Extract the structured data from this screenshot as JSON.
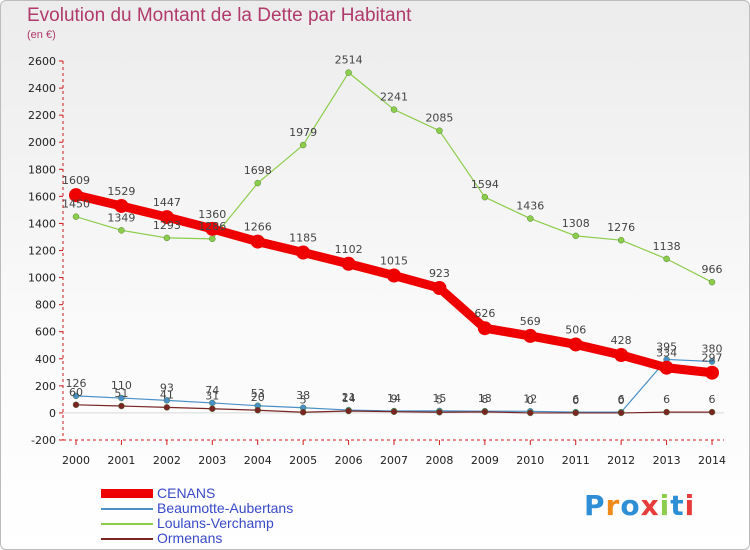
{
  "title": "Evolution du Montant de la Dette par Habitant",
  "subtitle": "(en €)",
  "logo_text": "Proxiti",
  "chart_data": {
    "type": "line",
    "x": [
      "2000",
      "2001",
      "2002",
      "2003",
      "2004",
      "2005",
      "2006",
      "2007",
      "2008",
      "2009",
      "2010",
      "2011",
      "2012",
      "2013",
      "2014"
    ],
    "ylim": [
      -200,
      2600
    ],
    "yticks": [
      -200,
      0,
      200,
      400,
      600,
      800,
      1000,
      1200,
      1400,
      1600,
      1800,
      2000,
      2200,
      2400,
      2600
    ],
    "grid": false,
    "legend_position": "bottom-left",
    "series": [
      {
        "name": "CENANS",
        "color": "#ee0000",
        "values": [
          1609,
          1529,
          1447,
          1360,
          1266,
          1185,
          1102,
          1015,
          923,
          626,
          569,
          506,
          428,
          334,
          297
        ],
        "labels": [
          "1609",
          "1529",
          "1447",
          "1360",
          "1266",
          "1185",
          "1102",
          "1015",
          "923",
          "626",
          "569",
          "506",
          "428",
          "334",
          "297"
        ]
      },
      {
        "name": "Beaumotte-Aubertans",
        "color": "#4a90c8",
        "values": [
          126,
          110,
          93,
          74,
          53,
          38,
          21,
          14,
          15,
          13,
          12,
          6,
          6,
          395,
          380
        ],
        "labels": [
          "126",
          "110",
          "93",
          "74",
          "53",
          "38",
          "21",
          "14",
          "15",
          "13",
          "12",
          "6",
          "6",
          "395",
          "380"
        ]
      },
      {
        "name": "Loulans-Verchamp",
        "color": "#8ccd4c",
        "values": [
          1450,
          1349,
          1293,
          1286,
          1698,
          1979,
          2514,
          2241,
          2085,
          1594,
          1436,
          1308,
          1276,
          1138,
          966
        ],
        "labels": [
          "1450",
          "1349",
          "1293",
          "1286",
          "1698",
          "1979",
          "2514",
          "2241",
          "2085",
          "1594",
          "1436",
          "1308",
          "1276",
          "1138",
          "966"
        ]
      },
      {
        "name": "Ormenans",
        "color": "#7a2424",
        "values": [
          60,
          51,
          41,
          31,
          20,
          5,
          14,
          9,
          5,
          8,
          0,
          0,
          0,
          6,
          6
        ],
        "labels": [
          "60",
          "51",
          "41",
          "31",
          "20",
          "5",
          "14",
          "9",
          "5",
          "8",
          "0",
          "0",
          "0",
          "6",
          "6"
        ]
      }
    ]
  }
}
